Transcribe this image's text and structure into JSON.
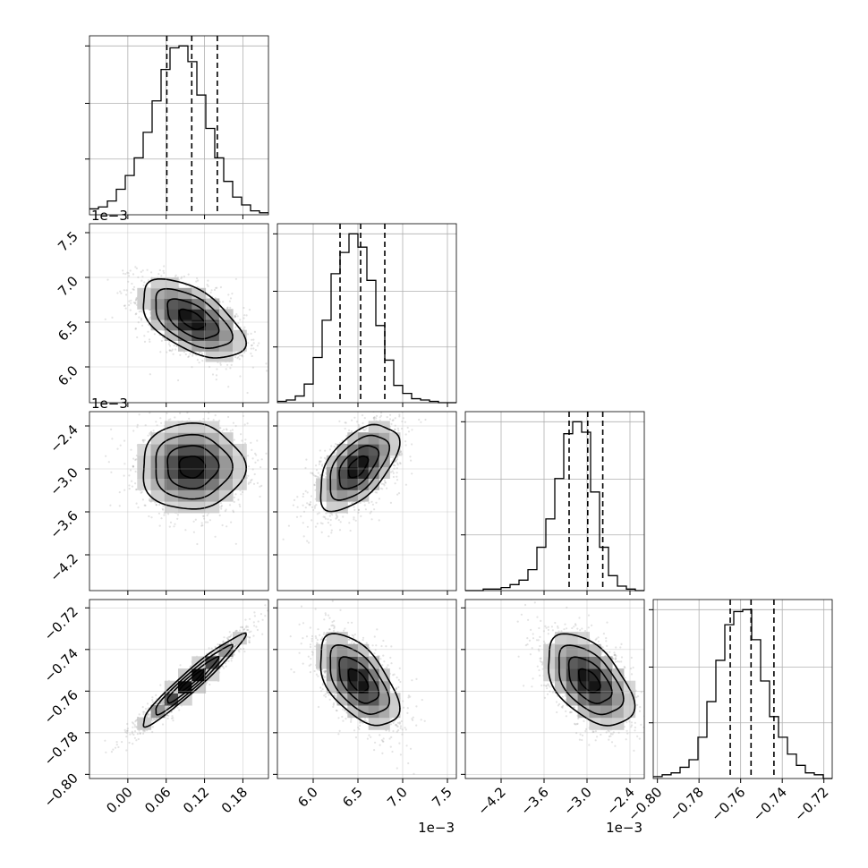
{
  "chart_data": {
    "type": "corner",
    "parameters": [
      {
        "index": 0,
        "range": [
          -0.06,
          0.22
        ],
        "ticks": [
          0.0,
          0.06,
          0.12,
          0.18
        ],
        "tick_labels": [
          "0.00",
          "0.06",
          "0.12",
          "0.18"
        ],
        "offset_label": "",
        "quantiles": [
          0.061,
          0.1,
          0.14
        ],
        "histogram": {
          "edges_start": -0.06,
          "bin_width": 0.014,
          "counts": [
            3,
            4,
            7,
            13,
            20,
            29,
            42,
            58,
            74,
            85,
            86,
            78,
            61,
            44,
            29,
            17,
            9,
            5,
            2,
            1
          ]
        }
      },
      {
        "index": 1,
        "range": [
          5.6,
          7.6
        ],
        "ticks": [
          6.0,
          6.5,
          7.0,
          7.5
        ],
        "tick_labels": [
          "6.0",
          "6.5",
          "7.0",
          "7.5"
        ],
        "offset_label": "1e−3",
        "quantiles": [
          6.3,
          6.53,
          6.8
        ],
        "histogram": {
          "edges_start": 5.6,
          "bin_width": 0.1,
          "counts": [
            1,
            2,
            5,
            14,
            34,
            62,
            97,
            113,
            127,
            117,
            92,
            58,
            32,
            13,
            7,
            3,
            2,
            1,
            0,
            0
          ]
        }
      },
      {
        "index": 2,
        "range": [
          -4.7,
          -2.2
        ],
        "ticks": [
          -4.2,
          -3.6,
          -3.0,
          -2.4
        ],
        "tick_labels": [
          "−4.2",
          "−3.6",
          "−3.0",
          "−2.4"
        ],
        "offset_label": "1e−3",
        "quantiles": [
          -3.25,
          -2.99,
          -2.78
        ],
        "histogram": {
          "edges_start": -4.7,
          "bin_width": 0.125,
          "counts": [
            0,
            0,
            1,
            1,
            2,
            4,
            7,
            14,
            29,
            48,
            75,
            105,
            113,
            106,
            66,
            29,
            10,
            3,
            1,
            0
          ]
        }
      },
      {
        "index": 3,
        "range": [
          -0.802,
          -0.716
        ],
        "ticks": [
          -0.8,
          -0.78,
          -0.76,
          -0.74,
          -0.72
        ],
        "tick_labels": [
          "−0.80",
          "−0.78",
          "−0.76",
          "−0.74",
          "−0.72"
        ],
        "offset_label": "",
        "quantiles": [
          -0.765,
          -0.755,
          -0.744
        ],
        "histogram": {
          "edges_start": -0.802,
          "bin_width": 0.0043,
          "counts": [
            1,
            2,
            3,
            6,
            10,
            22,
            41,
            63,
            82,
            89,
            90,
            74,
            52,
            33,
            22,
            13,
            7,
            3,
            2,
            0
          ]
        }
      }
    ],
    "pairs": [
      {
        "x": 0,
        "y": 1,
        "mean": [
          0.1,
          6.53
        ],
        "sd": [
          0.04,
          0.22
        ],
        "rho": -0.55
      },
      {
        "x": 0,
        "y": 2,
        "mean": [
          0.1,
          -2.97
        ],
        "sd": [
          0.04,
          0.3
        ],
        "rho": 0.0
      },
      {
        "x": 1,
        "y": 2,
        "mean": [
          6.5,
          -2.97
        ],
        "sd": [
          0.22,
          0.3
        ],
        "rho": 0.55
      },
      {
        "x": 0,
        "y": 3,
        "mean": [
          0.1,
          -0.755
        ],
        "sd": [
          0.04,
          0.011
        ],
        "rho": 0.96
      },
      {
        "x": 1,
        "y": 3,
        "mean": [
          6.5,
          -0.755
        ],
        "sd": [
          0.22,
          0.011
        ],
        "rho": -0.55
      },
      {
        "x": 2,
        "y": 3,
        "mean": [
          -2.97,
          -0.755
        ],
        "sd": [
          0.3,
          0.011
        ],
        "rho": -0.5
      }
    ],
    "grid": true,
    "colors": {
      "line": "#000000",
      "grid": "#b0b0b0",
      "points": "#7f7f7f"
    }
  }
}
